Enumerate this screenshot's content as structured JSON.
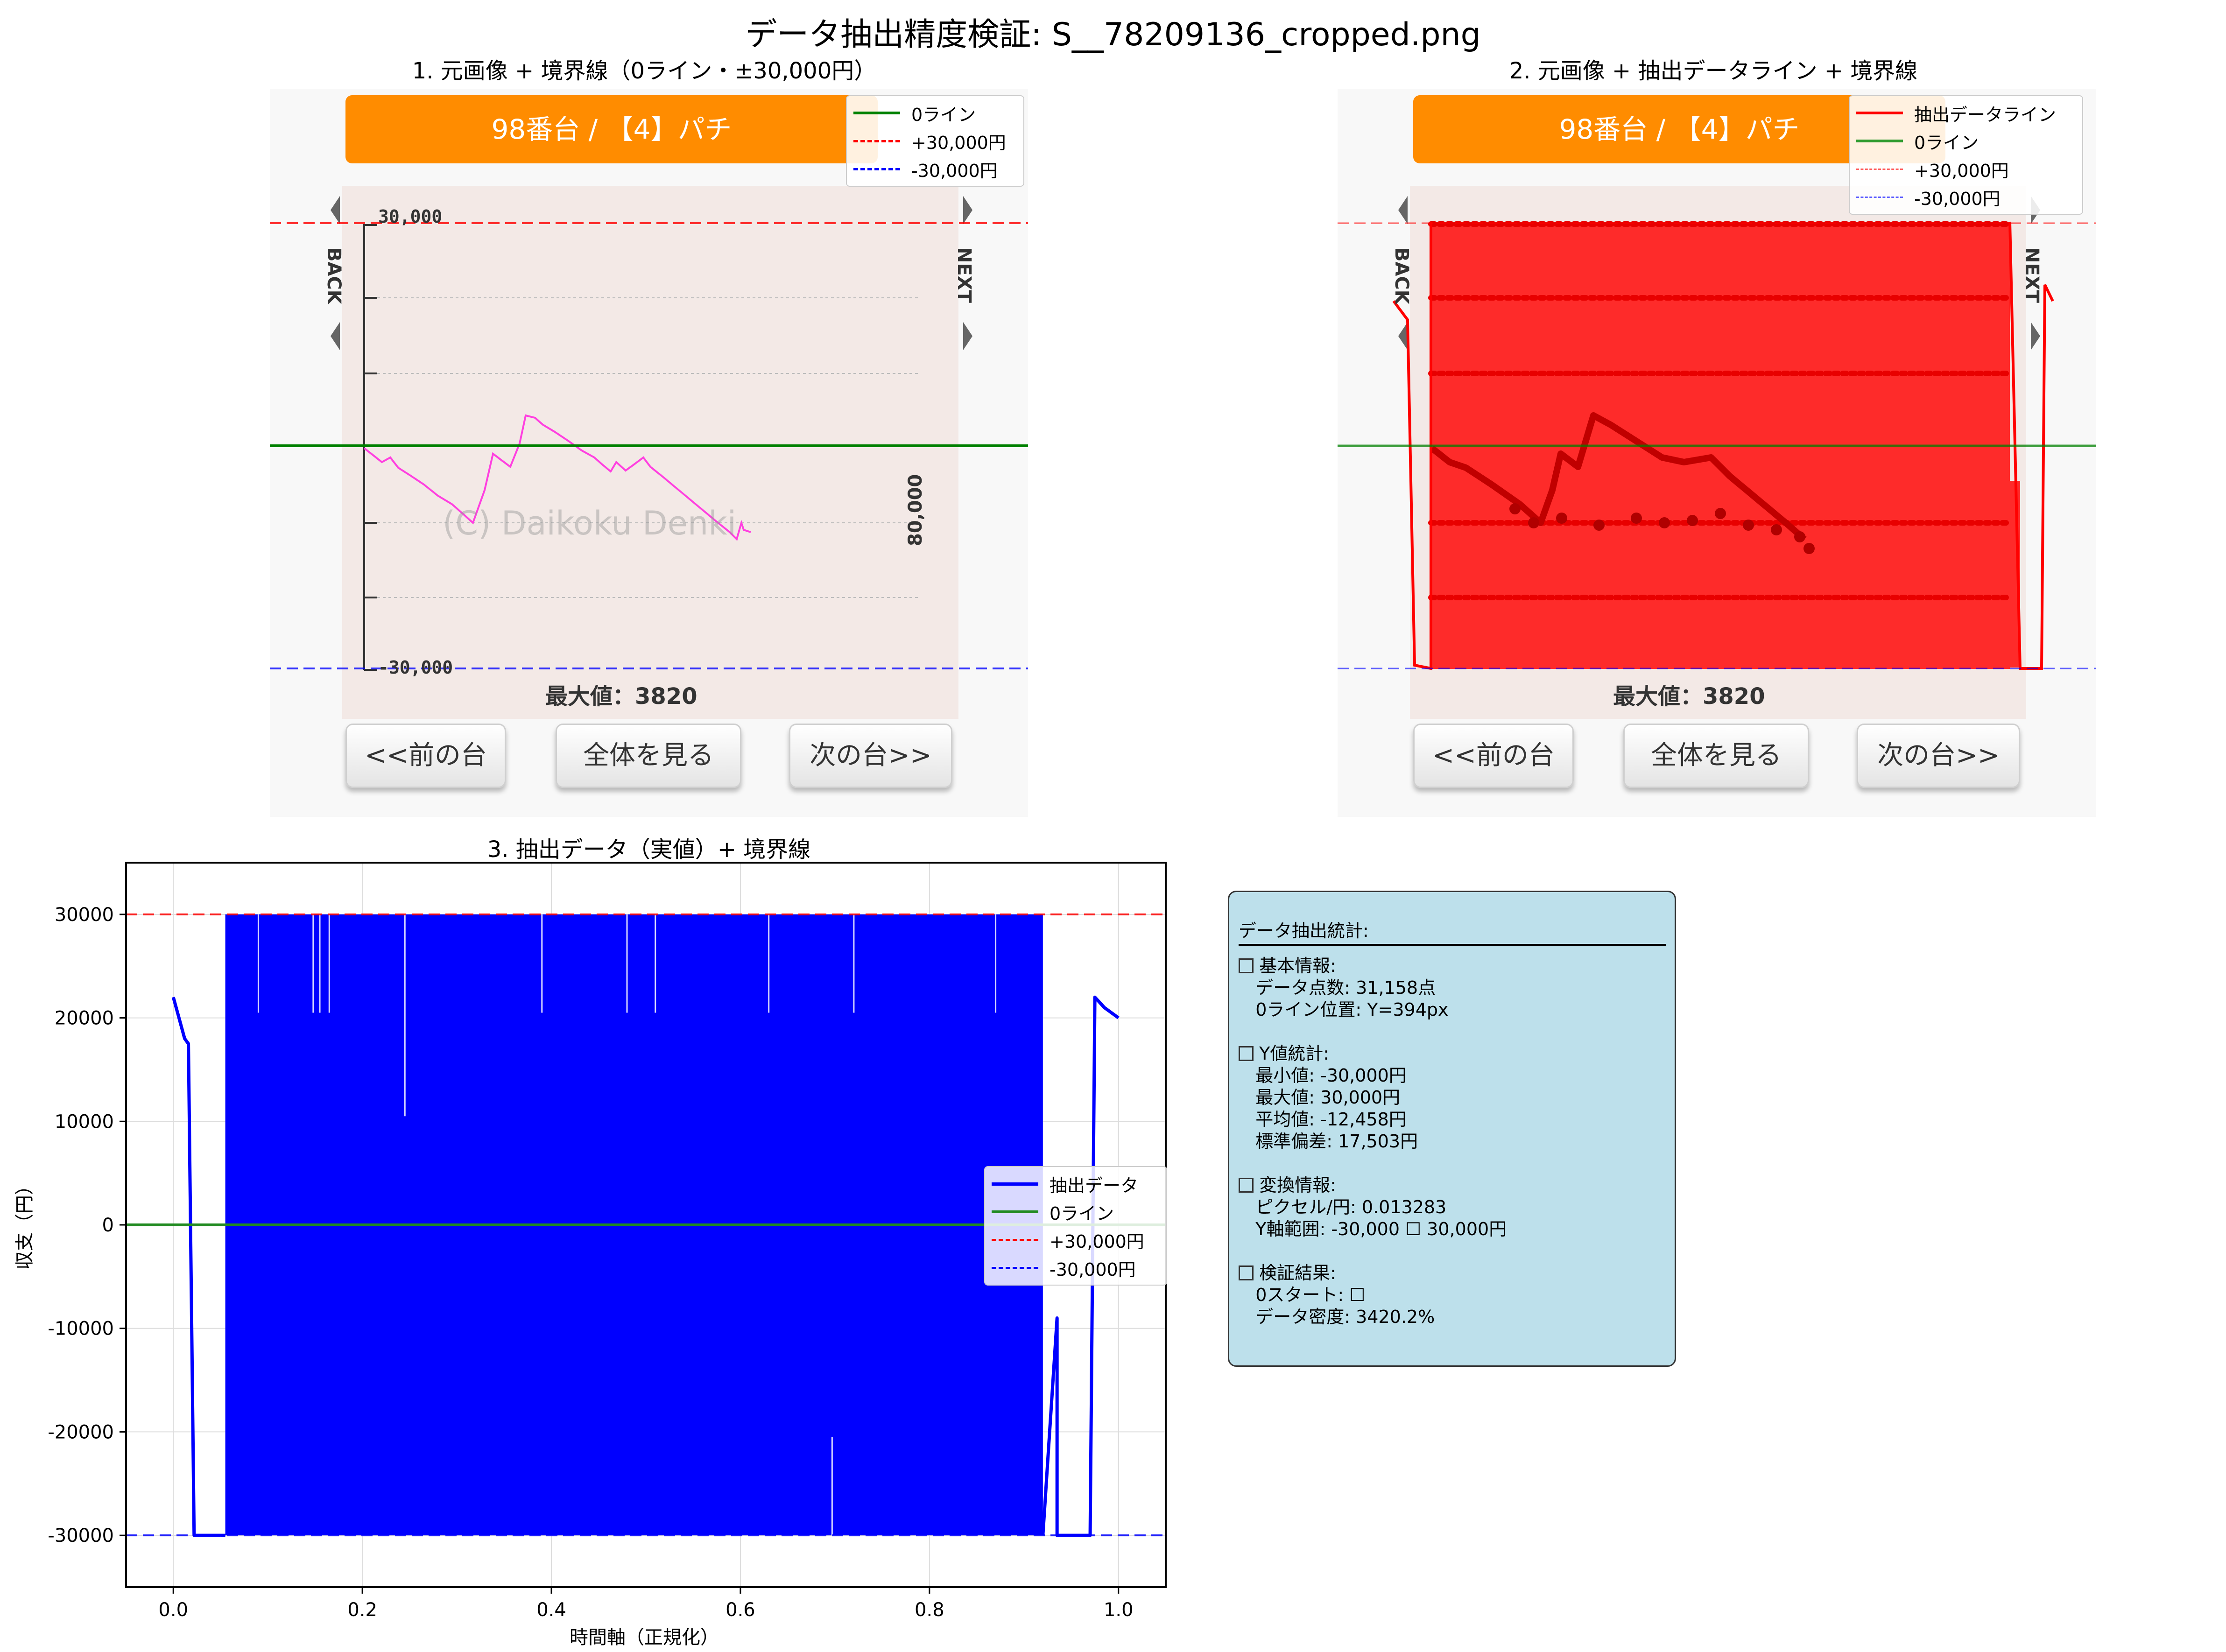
{
  "suptitle": "データ抽出精度検証: S__78209136_cropped.png",
  "panel1": {
    "title": "1. 元画像 + 境界線（0ライン・±30,000円）",
    "legend": [
      "0ライン",
      "+30,000円",
      "-30,000円"
    ]
  },
  "panel2": {
    "title": "2. 元画像 + 抽出データライン + 境界線",
    "legend": [
      "抽出データライン",
      "0ライン",
      "+30,000円",
      "-30,000円"
    ]
  },
  "screenshot": {
    "header": "98番台 / 【4】パチ",
    "back": "BACK",
    "next": "NEXT",
    "ytop": "30,000",
    "ybottom": "-30,000",
    "right_label": "80,000",
    "watermark": "(C) Daikoku Denki",
    "max_label": "最大値：3820",
    "buttons": [
      "<<前の台",
      "全体を見る",
      "次の台>>"
    ]
  },
  "chart_data": {
    "type": "line",
    "title": "3. 抽出データ（実値）+ 境界線",
    "xlabel": "時間軸（正規化）",
    "ylabel": "収支（円）",
    "xlim": [
      -0.05,
      1.05
    ],
    "ylim": [
      -35000,
      35000
    ],
    "xticks": [
      0.0,
      0.2,
      0.4,
      0.6,
      0.8,
      1.0
    ],
    "xtick_labels": [
      "0.0",
      "0.2",
      "0.4",
      "0.6",
      "0.8",
      "1.0"
    ],
    "yticks": [
      30000,
      20000,
      10000,
      0,
      -10000,
      -20000,
      -30000
    ],
    "ytick_labels": [
      "30000",
      "20000",
      "10000",
      "0",
      "-10000",
      "-20000",
      "-30000"
    ],
    "grid": true,
    "legend_position": "center-right",
    "series": [
      {
        "name": "抽出データ",
        "color": "#0000ff",
        "line": [
          [
            0.0,
            22000
          ],
          [
            0.012,
            18000
          ],
          [
            0.016,
            17500
          ],
          [
            0.022,
            -30000
          ],
          [
            0.05,
            -30000
          ]
        ],
        "band": {
          "x_start": 0.055,
          "x_end": 0.92,
          "low": -30000,
          "high": 30000
        },
        "tail": [
          [
            0.92,
            -30000
          ],
          [
            0.935,
            -9000
          ],
          [
            0.935,
            -30000
          ],
          [
            0.97,
            -30000
          ],
          [
            0.975,
            22000
          ],
          [
            0.985,
            21000
          ],
          [
            1.0,
            20000
          ]
        ]
      },
      {
        "name": "0ライン",
        "color": "#228b22",
        "y": 0
      },
      {
        "name": "+30,000円",
        "color": "#ff0000",
        "y": 30000,
        "dash": true
      },
      {
        "name": "-30,000円",
        "color": "#0000ff",
        "y": -30000,
        "dash": true
      }
    ],
    "gap_lines_top": [
      [
        0.09,
        20500
      ],
      [
        0.148,
        20500
      ],
      [
        0.155,
        20500
      ],
      [
        0.165,
        20500
      ],
      [
        0.245,
        10500
      ],
      [
        0.39,
        20500
      ],
      [
        0.48,
        20500
      ],
      [
        0.51,
        20500
      ],
      [
        0.63,
        20500
      ],
      [
        0.72,
        20500
      ],
      [
        0.87,
        20500
      ]
    ],
    "gap_lines_bottom": [
      [
        0.697,
        -20500
      ]
    ]
  },
  "stats": {
    "title": "データ抽出統計:",
    "lines": [
      {
        "box": true,
        "text": "基本情報:"
      },
      {
        "box": false,
        "text": "   データ点数: 31,158点"
      },
      {
        "box": false,
        "text": "   0ライン位置: Y=394px"
      },
      {
        "box": false,
        "text": ""
      },
      {
        "box": true,
        "text": "Y値統計:"
      },
      {
        "box": false,
        "text": "   最小値: -30,000円"
      },
      {
        "box": false,
        "text": "   最大値: 30,000円"
      },
      {
        "box": false,
        "text": "   平均値: -12,458円"
      },
      {
        "box": false,
        "text": "   標準偏差: 17,503円"
      },
      {
        "box": false,
        "text": ""
      },
      {
        "box": true,
        "text": "変換情報:"
      },
      {
        "box": false,
        "text": "   ピクセル/円: 0.013283"
      },
      {
        "box": false,
        "text": "   Y軸範囲: -30,000 ☐ 30,000円"
      },
      {
        "box": false,
        "text": ""
      },
      {
        "box": true,
        "text": "検証結果:"
      },
      {
        "box": false,
        "text": "   0スタート: ☐"
      },
      {
        "box": false,
        "text": "   データ密度: 3420.2%"
      }
    ]
  },
  "colors": {
    "header_orange": "#ff8c00",
    "pink_line": "#ff40e0",
    "extract_red": "#ff0000",
    "zero_green": "#228b22",
    "plus_red": "#ff0000",
    "minus_blue": "#0000ff",
    "stats_bg": "#add8e6"
  }
}
